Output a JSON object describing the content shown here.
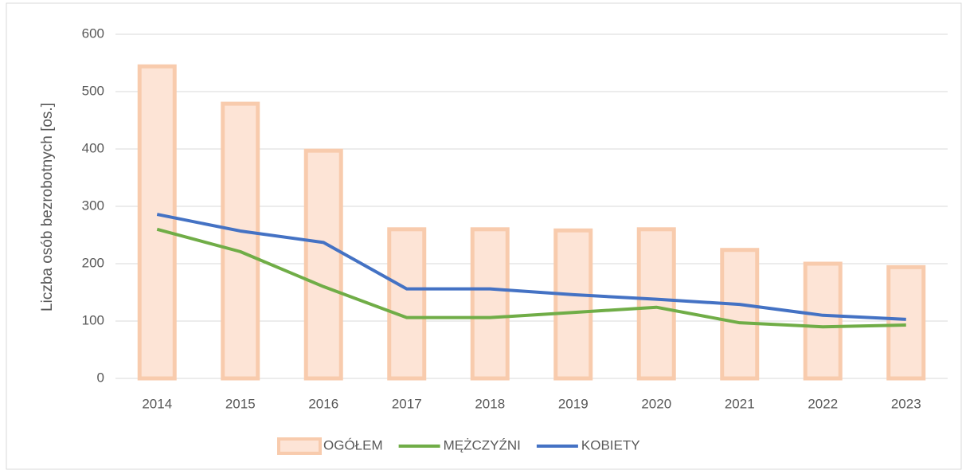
{
  "chart_data": {
    "type": "bar-line",
    "y_label": "Liczba osób bezrobotnych [os.]",
    "categories": [
      "2014",
      "2015",
      "2016",
      "2017",
      "2018",
      "2019",
      "2020",
      "2021",
      "2022",
      "2023"
    ],
    "series": [
      {
        "name": "OGÓŁEM",
        "type": "bar",
        "color": "#fde4d6",
        "edge_color": "#f8cbad",
        "values": [
          544,
          479,
          397,
          260,
          260,
          258,
          260,
          224,
          200,
          194
        ]
      },
      {
        "name": "MĘŻCZYŹNI",
        "type": "line",
        "color": "#70ad47",
        "values": [
          260,
          221,
          160,
          106,
          106,
          115,
          124,
          97,
          90,
          93
        ]
      },
      {
        "name": "KOBIETY",
        "type": "line",
        "color": "#4472c4",
        "values": [
          286,
          257,
          237,
          156,
          156,
          146,
          138,
          129,
          110,
          103
        ]
      }
    ],
    "ylim": [
      0,
      600
    ],
    "yticks": [
      0,
      100,
      200,
      300,
      400,
      500,
      600
    ],
    "grid": true,
    "legend": "bottom"
  }
}
